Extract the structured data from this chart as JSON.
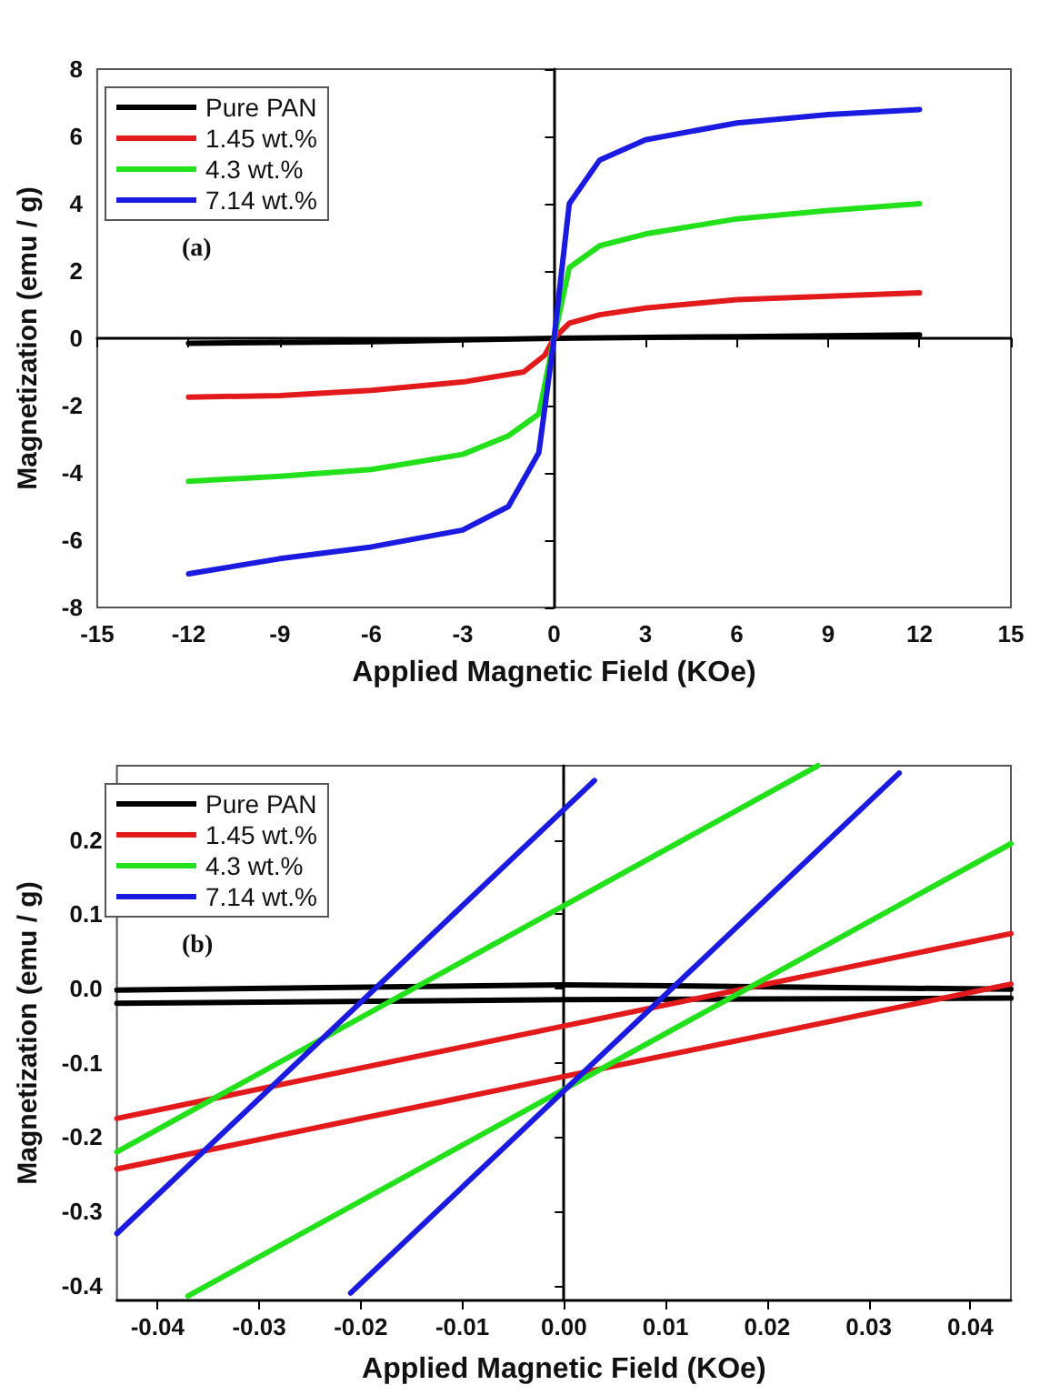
{
  "chart_data": [
    {
      "type": "line",
      "xlabel": "Applied Magnetic Field (KOe)",
      "ylabel": "Magnetization (emu / g)",
      "annotations": [
        "(a)"
      ],
      "xlim": [
        -15,
        15
      ],
      "xticks": [
        -15,
        -12,
        -9,
        -6,
        -3,
        0,
        3,
        6,
        9,
        12,
        15
      ],
      "ylim": [
        -8,
        8
      ],
      "yticks": [
        -8,
        -6,
        -4,
        -2,
        0,
        2,
        4,
        6,
        8
      ],
      "legend": "top left",
      "marker": "none",
      "series": [
        {
          "name": "Pure PAN",
          "color": "#000000",
          "x": [
            -12,
            -6,
            0,
            6,
            12
          ],
          "values": [
            -0.15,
            -0.1,
            0,
            0.05,
            0.1
          ]
        },
        {
          "name": "1.45 wt.%",
          "color": "#e31a1c",
          "x": [
            -12,
            -9,
            -6,
            -3,
            -1,
            -0.3,
            0,
            0.5,
            1.5,
            3,
            6,
            9,
            12
          ],
          "values": [
            -1.75,
            -1.7,
            -1.55,
            -1.3,
            -1.0,
            -0.5,
            0,
            0.45,
            0.7,
            0.9,
            1.15,
            1.25,
            1.35
          ]
        },
        {
          "name": "4.3 wt.%",
          "color": "#22e01a",
          "x": [
            -12,
            -9,
            -6,
            -3,
            -1.5,
            -0.5,
            0,
            0.5,
            1.5,
            3,
            6,
            9,
            12
          ],
          "values": [
            -4.25,
            -4.1,
            -3.9,
            -3.45,
            -2.9,
            -2.25,
            0,
            2.1,
            2.75,
            3.1,
            3.55,
            3.8,
            4.0
          ]
        },
        {
          "name": "7.14 wt.%",
          "color": "#1a1ae0",
          "x": [
            -12,
            -9,
            -6,
            -3,
            -1.5,
            -0.5,
            0,
            0.5,
            1.5,
            3,
            6,
            9,
            12
          ],
          "values": [
            -7.0,
            -6.55,
            -6.2,
            -5.7,
            -5.0,
            -3.4,
            0,
            4.0,
            5.3,
            5.9,
            6.4,
            6.65,
            6.8
          ]
        }
      ]
    },
    {
      "type": "line",
      "xlabel": "Applied Magnetic Field (KOe)",
      "ylabel": "Magnetization (emu / g)",
      "annotations": [
        "(b)"
      ],
      "xlim": [
        -0.044,
        0.044
      ],
      "xticks": [
        -0.04,
        -0.03,
        -0.02,
        -0.01,
        {
          "value": 0,
          "label": "0.00"
        },
        0.01,
        0.02,
        0.03,
        0.04
      ],
      "ylim": [
        -0.42,
        0.3
      ],
      "yticks": [
        -0.4,
        -0.3,
        -0.2,
        -0.1,
        {
          "value": 0,
          "label": "0.0"
        },
        0.1,
        0.2
      ],
      "legend": "top left",
      "marker": "none",
      "series": [
        {
          "name": "Pure PAN",
          "color": "#000000",
          "x": [
            -0.044,
            0,
            0.044
          ],
          "values": [
            -0.002,
            0.005,
            -0.001
          ]
        },
        {
          "color": "#000000",
          "x": [
            -0.044,
            0,
            0.044
          ],
          "values": [
            -0.02,
            -0.015,
            -0.013
          ]
        },
        {
          "name": "1.45 wt.%",
          "color": "#e31a1c",
          "x": [
            -0.044,
            0.044
          ],
          "values": [
            -0.175,
            0.074
          ]
        },
        {
          "color": "#e31a1c",
          "x": [
            -0.044,
            0.044
          ],
          "values": [
            -0.243,
            0.006
          ]
        },
        {
          "name": "4.3 wt.%",
          "color": "#22e01a",
          "x": [
            -0.044,
            0.025
          ],
          "values": [
            -0.22,
            0.3
          ]
        },
        {
          "color": "#22e01a",
          "x": [
            -0.037,
            0.044
          ],
          "values": [
            -0.414,
            0.195
          ]
        },
        {
          "name": "7.14 wt.%",
          "color": "#1a1ae0",
          "x": [
            -0.044,
            0.003
          ],
          "values": [
            -0.33,
            0.28
          ]
        },
        {
          "color": "#1a1ae0",
          "x": [
            -0.021,
            0.033
          ],
          "values": [
            -0.41,
            0.29
          ]
        }
      ]
    }
  ]
}
